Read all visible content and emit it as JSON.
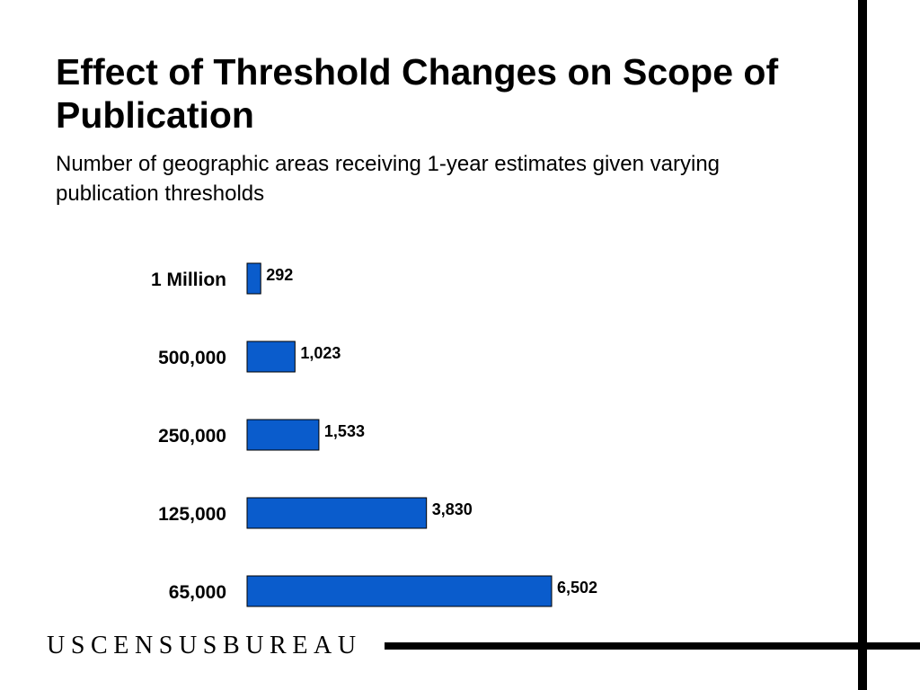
{
  "title": "Effect of Threshold Changes on Scope of Publication",
  "subtitle": "Number of geographic areas receiving 1-year estimates given varying publication thresholds",
  "logo_text": "USCENSUSBUREAU",
  "colors": {
    "bar_fill": "#0a5ccc",
    "bar_stroke": "#000000",
    "rule": "#000000"
  },
  "chart_data": {
    "type": "bar",
    "orientation": "horizontal",
    "title": "",
    "xlabel": "",
    "ylabel": "",
    "categories": [
      "1 Million",
      "500,000",
      "250,000",
      "125,000",
      "65,000"
    ],
    "values": [
      292,
      1023,
      1533,
      3830,
      6502
    ],
    "value_labels": [
      "292",
      "1,023",
      "1,533",
      "3,830",
      "6,502"
    ],
    "xlim": [
      0,
      6502
    ],
    "grid": false,
    "legend": "none"
  }
}
